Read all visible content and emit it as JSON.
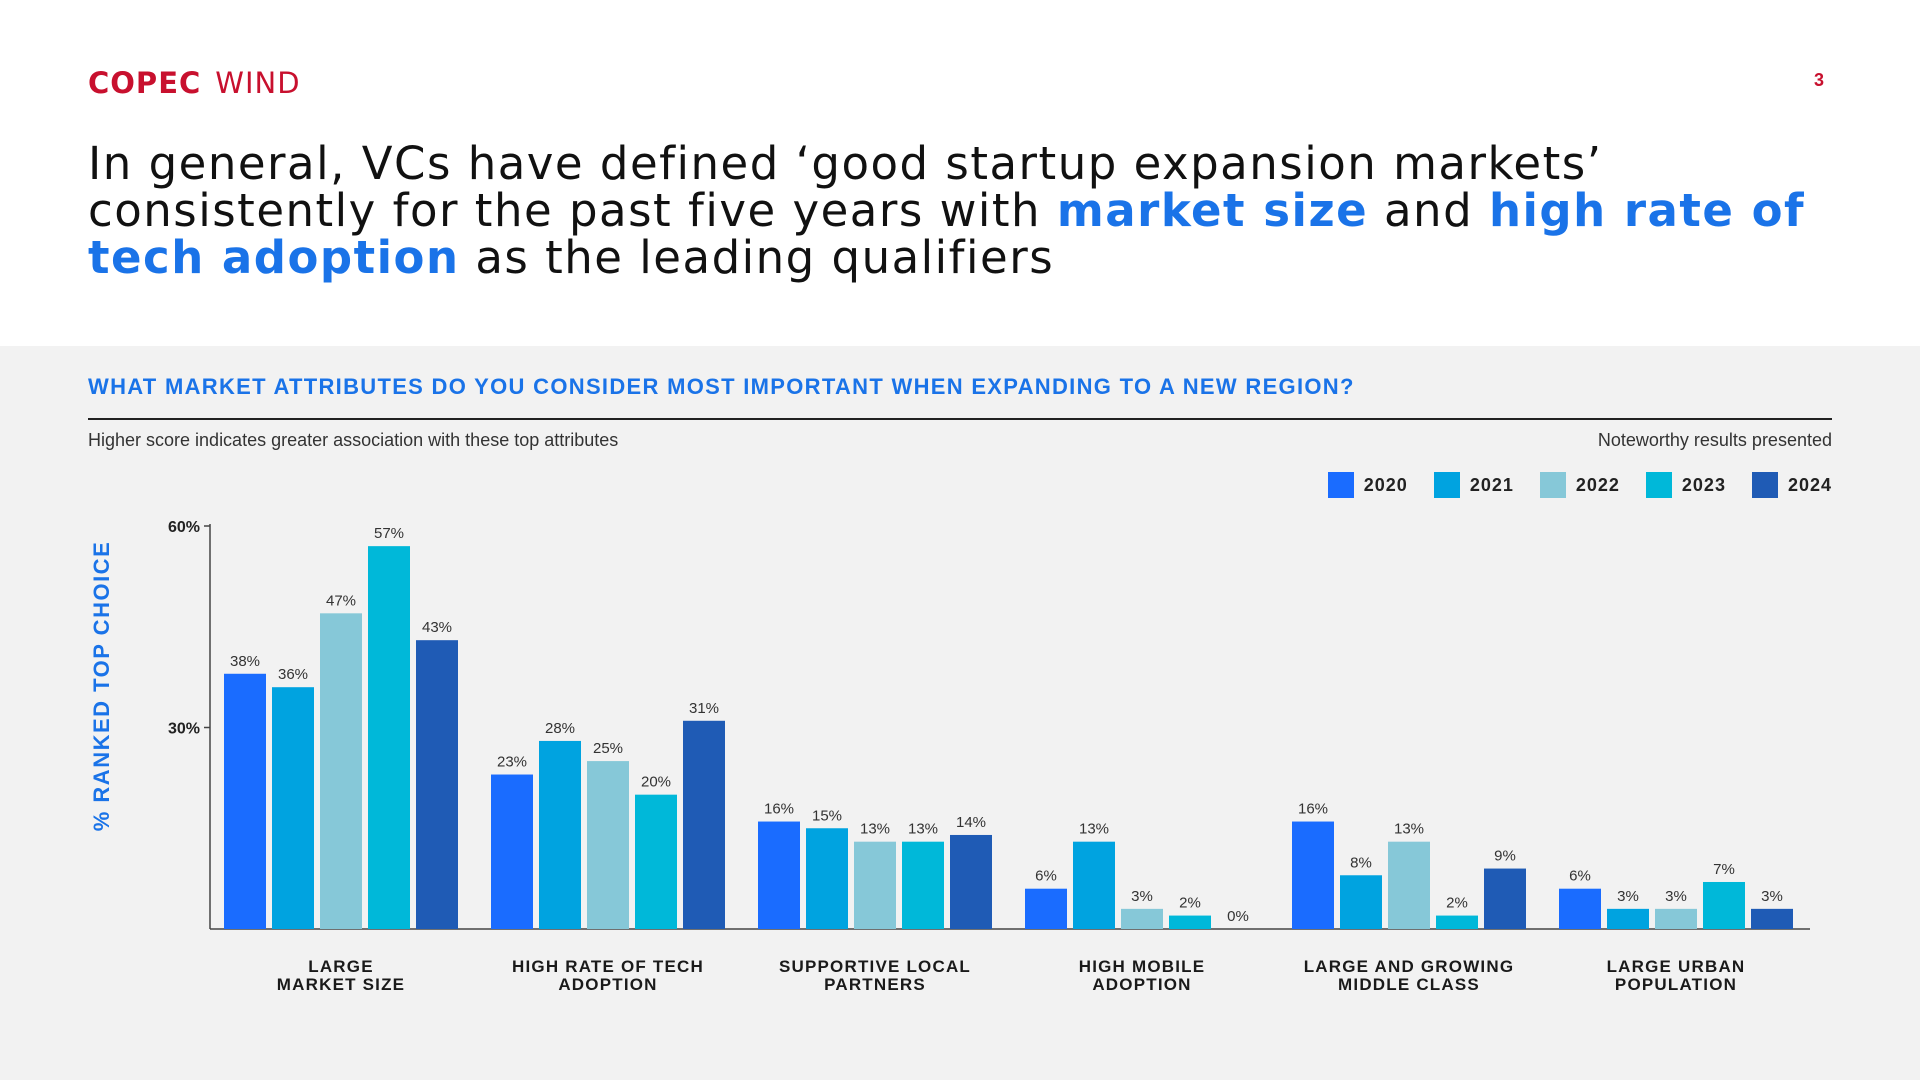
{
  "logo": {
    "brand": "COPEC",
    "sub": "WIND"
  },
  "page_number": "3",
  "headline": {
    "part1": "In general, VCs have defined ‘good startup expansion markets’ consistently for the past five years with ",
    "highlight1": "market size",
    "part2": " and ",
    "highlight2": "high rate of tech adoption",
    "part3": " as the leading qualifiers"
  },
  "panel": {
    "question": "WHAT MARKET ATTRIBUTES DO YOU CONSIDER MOST IMPORTANT WHEN EXPANDING TO A NEW REGION?",
    "note_left": "Higher score indicates greater association with these top attributes",
    "note_right": "Noteworthy results presented"
  },
  "colors": {
    "brand": "#c8102e",
    "accent": "#1a73e8",
    "panel_bg": "#f2f2f2"
  },
  "chart_data": {
    "type": "bar",
    "ylabel": "% RANKED TOP CHOICE",
    "ylim": [
      0,
      60
    ],
    "yticks": [
      {
        "value": 60,
        "label": "60%"
      },
      {
        "value": 30,
        "label": "30%"
      }
    ],
    "categories": [
      [
        "LARGE",
        "MARKET SIZE"
      ],
      [
        "HIGH RATE OF TECH",
        "ADOPTION"
      ],
      [
        "SUPPORTIVE LOCAL",
        "PARTNERS"
      ],
      [
        "HIGH MOBILE",
        "ADOPTION"
      ],
      [
        "LARGE AND GROWING",
        "MIDDLE CLASS"
      ],
      [
        "LARGE URBAN",
        "POPULATION"
      ]
    ],
    "legend_position": "top-right",
    "series": [
      {
        "name": "2020",
        "color": "#1a6cff",
        "values": [
          38,
          23,
          16,
          6,
          16,
          6
        ]
      },
      {
        "name": "2021",
        "color": "#00a3e0",
        "values": [
          36,
          28,
          15,
          13,
          8,
          3
        ]
      },
      {
        "name": "2022",
        "color": "#86c8d8",
        "values": [
          47,
          25,
          13,
          3,
          13,
          3
        ]
      },
      {
        "name": "2023",
        "color": "#00b8d9",
        "values": [
          57,
          20,
          13,
          2,
          2,
          7
        ]
      },
      {
        "name": "2024",
        "color": "#1f5bb5",
        "values": [
          43,
          31,
          14,
          0,
          9,
          3
        ]
      }
    ]
  }
}
